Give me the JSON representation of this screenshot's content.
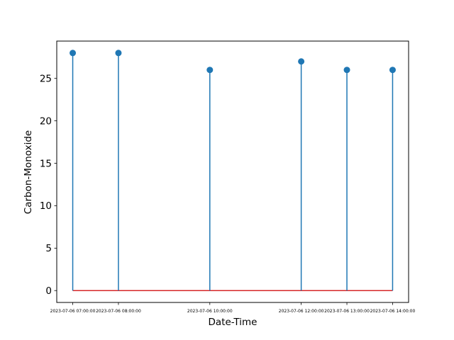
{
  "chart_data": {
    "type": "stem",
    "xlabel": "Date-Time",
    "ylabel": "Carbon-Monoxide",
    "ylim": [
      -1.4,
      29.4
    ],
    "yticks": [
      0,
      5,
      10,
      15,
      20,
      25
    ],
    "x": [
      "2023-07-06 07:00:00",
      "2023-07-06 08:00:00",
      "2023-07-06 10:00:00",
      "2023-07-06 12:00:00",
      "2023-07-06 13:00:00",
      "2023-07-06 14:00:00"
    ],
    "values": [
      28,
      28,
      26,
      27,
      26,
      26
    ],
    "baseline": 0,
    "grid": false,
    "colors": {
      "stem": "#1f77b4",
      "marker": "#1f77b4",
      "baseline": "#d62728",
      "axes": "#000000"
    }
  }
}
